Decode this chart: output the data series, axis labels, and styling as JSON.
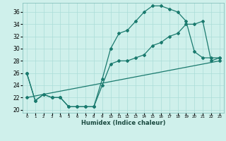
{
  "title": "",
  "xlabel": "Humidex (Indice chaleur)",
  "xlim": [
    -0.5,
    23.5
  ],
  "ylim": [
    19.5,
    37.5
  ],
  "yticks": [
    20,
    22,
    24,
    26,
    28,
    30,
    32,
    34,
    36
  ],
  "xticks": [
    0,
    1,
    2,
    3,
    4,
    5,
    6,
    7,
    8,
    9,
    10,
    11,
    12,
    13,
    14,
    15,
    16,
    17,
    18,
    19,
    20,
    21,
    22,
    23
  ],
  "bg_color": "#cff0eb",
  "line_color": "#1a7a6e",
  "grid_color": "#aaddd7",
  "line1_x": [
    0,
    1,
    2,
    3,
    4,
    5,
    6,
    7,
    8,
    9,
    10,
    11,
    12,
    13,
    14,
    15,
    16,
    17,
    18,
    19,
    20,
    21,
    22,
    23
  ],
  "line1_y": [
    26,
    21.5,
    22.5,
    22,
    22,
    20.5,
    20.5,
    20.5,
    20.5,
    25,
    30,
    32.5,
    33,
    34.5,
    36,
    37,
    37,
    36.5,
    36,
    34.5,
    29.5,
    28.5,
    28.5,
    28.5
  ],
  "line2_x": [
    0,
    1,
    2,
    3,
    4,
    5,
    6,
    7,
    8,
    9,
    10,
    11,
    12,
    13,
    14,
    15,
    16,
    17,
    18,
    19,
    20,
    21,
    22,
    23
  ],
  "line2_y": [
    26,
    21.5,
    22.5,
    22,
    22,
    20.5,
    20.5,
    20.5,
    20.5,
    24,
    27.5,
    28,
    28,
    28.5,
    29,
    30.5,
    31,
    32,
    32.5,
    34,
    34,
    34.5,
    28,
    28.5
  ],
  "line3_x": [
    0,
    23
  ],
  "line3_y": [
    22,
    28
  ],
  "figwidth": 3.2,
  "figheight": 2.0,
  "dpi": 100
}
